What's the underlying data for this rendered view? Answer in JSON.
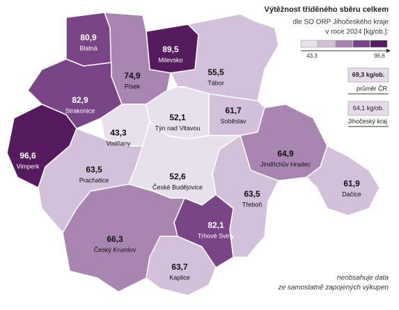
{
  "legend": {
    "title": "Výtěžnost tříděného sběru celkem",
    "subtitle": [
      "dle SO ORP Jihočeského kraje",
      "v roce 2024 [kg/ob.]:"
    ],
    "scale": {
      "min": 43.3,
      "max": 96.6,
      "min_label": "43,3",
      "max_label": "96,6",
      "colors": [
        "#e9e0ed",
        "#d3c0da",
        "#a886b1",
        "#7a4586",
        "#561b5e"
      ]
    }
  },
  "references": [
    {
      "value_label": "69,3 kg/ob.",
      "label": "průměr ČR"
    },
    {
      "value_label": "64,1 kg/ob.",
      "label": "Jihočeský kraj"
    }
  ],
  "note": [
    "neobsahuje data",
    "ze samostatně zapojených výkupen"
  ],
  "regions": [
    {
      "name": "Blatná",
      "value": 80.9,
      "value_label": "80,9"
    },
    {
      "name": "Milevsko",
      "value": 89.5,
      "value_label": "89,5"
    },
    {
      "name": "Písek",
      "value": 74.9,
      "value_label": "74,9"
    },
    {
      "name": "Tábor",
      "value": 55.5,
      "value_label": "55,5"
    },
    {
      "name": "Strakonice",
      "value": 82.9,
      "value_label": "82,9"
    },
    {
      "name": "Vimperk",
      "value": 96.6,
      "value_label": "96,6"
    },
    {
      "name": "Vodňany",
      "value": 43.3,
      "value_label": "43,3"
    },
    {
      "name": "Týn nad Vltavou",
      "value": 52.1,
      "value_label": "52,1"
    },
    {
      "name": "Soběslav",
      "value": 61.7,
      "value_label": "61,7"
    },
    {
      "name": "Jindřichův Hradec",
      "value": 64.9,
      "value_label": "64,9"
    },
    {
      "name": "Dačice",
      "value": 61.9,
      "value_label": "61,9"
    },
    {
      "name": "Prachatice",
      "value": 63.5,
      "value_label": "63,5"
    },
    {
      "name": "České Budějovice",
      "value": 52.6,
      "value_label": "52,6"
    },
    {
      "name": "Třeboň",
      "value": 63.5,
      "value_label": "63,5"
    },
    {
      "name": "Trhové Sviny",
      "value": 82.1,
      "value_label": "82,1"
    },
    {
      "name": "Český Krumlov",
      "value": 66.3,
      "value_label": "66,3"
    },
    {
      "name": "Kaplice",
      "value": 63.7,
      "value_label": "63,7"
    }
  ]
}
